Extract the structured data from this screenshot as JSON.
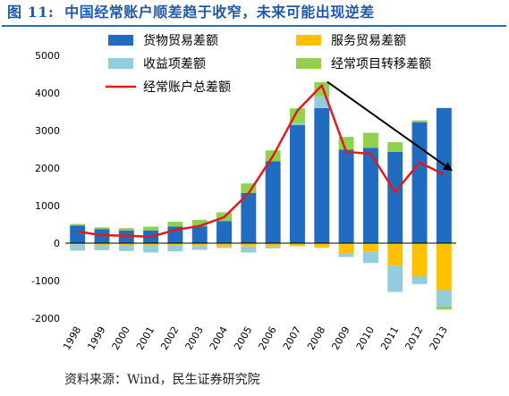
{
  "header": {
    "figure_number": "图 11:",
    "title": "中国经常账户顺差趋于收窄，未来可能出现逆差"
  },
  "source": "资料来源：Wind，民生证券研究院",
  "colors": {
    "goods": "#1f6cc0",
    "services": "#ffc000",
    "income": "#93cddd",
    "transfers": "#92d050",
    "total": "#e31a1c",
    "arrow": "#000000"
  },
  "chart_data": {
    "type": "bar",
    "stacked": true,
    "categories": [
      "1998",
      "1999",
      "2000",
      "2001",
      "2002",
      "2003",
      "2004",
      "2005",
      "2006",
      "2007",
      "2008",
      "2009",
      "2010",
      "2011",
      "2012",
      "2013"
    ],
    "ylim": [
      -2000,
      5000
    ],
    "yticks": [
      -2000,
      -1000,
      0,
      1000,
      2000,
      3000,
      4000,
      5000
    ],
    "legend_position": "top",
    "series": [
      {
        "name": "货物贸易差额",
        "key": "goods",
        "values": [
          470,
          370,
          340,
          340,
          440,
          450,
          590,
          1340,
          2180,
          3150,
          3600,
          2490,
          2540,
          2430,
          3220,
          3600
        ]
      },
      {
        "name": "服务贸易差额",
        "key": "services",
        "values": [
          -30,
          -50,
          -60,
          -60,
          -70,
          -80,
          -90,
          -90,
          -90,
          -80,
          -120,
          -290,
          -230,
          -600,
          -890,
          -1250
        ]
      },
      {
        "name": "收益项差额",
        "key": "income",
        "values": [
          -170,
          -140,
          -150,
          -190,
          -150,
          -100,
          -40,
          -160,
          -50,
          50,
          310,
          -80,
          -300,
          -700,
          -200,
          -440
        ]
      },
      {
        "name": "经常项目转移差额",
        "key": "transfers",
        "values": [
          40,
          50,
          60,
          100,
          130,
          170,
          230,
          250,
          290,
          390,
          380,
          340,
          400,
          260,
          50,
          -80
        ]
      },
      {
        "name": "经常账户总差额",
        "key": "total",
        "type": "line",
        "values": [
          310,
          210,
          200,
          170,
          350,
          460,
          690,
          1330,
          2320,
          3530,
          4200,
          2430,
          2380,
          1360,
          2150,
          1830
        ]
      }
    ],
    "annotation": {
      "type": "arrow",
      "from_category": "2008",
      "from_value": 4300,
      "to_category": "2013",
      "to_value": 1950
    }
  }
}
